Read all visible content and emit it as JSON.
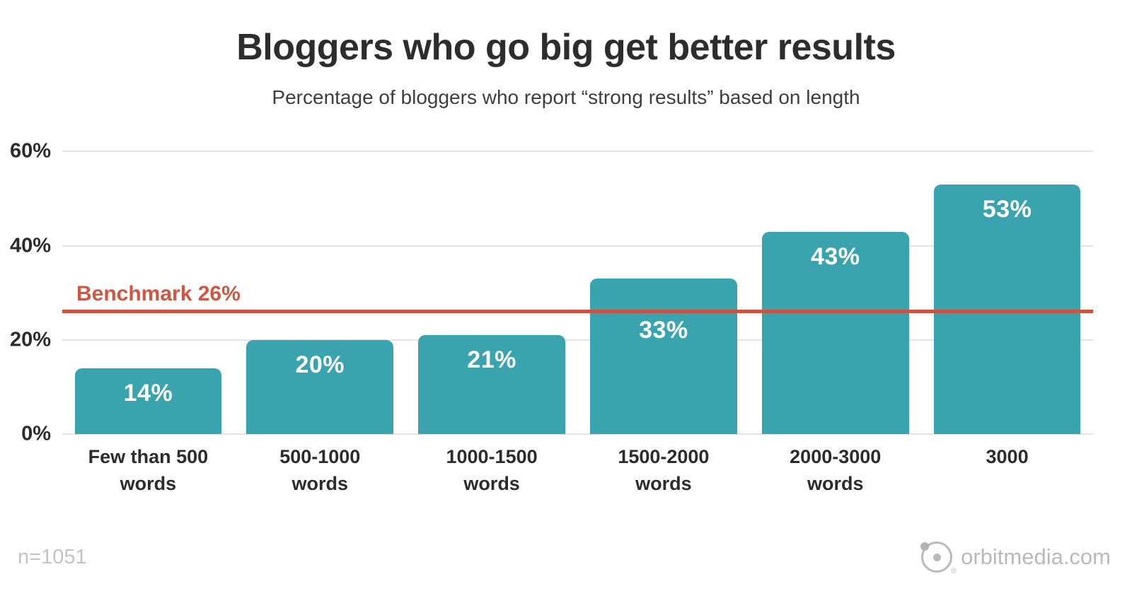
{
  "chart_data": {
    "type": "bar",
    "title": "Bloggers who go big get better results",
    "subtitle": "Percentage of bloggers who report “strong results” based on length",
    "categories": [
      "Few than 500 words",
      "500-1000 words",
      "1000-1500 words",
      "1500-2000 words",
      "2000-3000 words",
      "3000"
    ],
    "category_lines": [
      [
        "Few than 500",
        "words"
      ],
      [
        "500-1000",
        "words"
      ],
      [
        "1000-1500",
        "words"
      ],
      [
        "1500-2000",
        "words"
      ],
      [
        "2000-3000",
        "words"
      ],
      [
        "3000"
      ]
    ],
    "values": [
      14,
      20,
      21,
      33,
      43,
      53
    ],
    "value_labels": [
      "14%",
      "20%",
      "21%",
      "33%",
      "43%",
      "53%"
    ],
    "xlabel": "",
    "ylabel": "",
    "ylim": [
      0,
      60
    ],
    "yticks": [
      {
        "value": 0,
        "label": "0%"
      },
      {
        "value": 20,
        "label": "20%"
      },
      {
        "value": 40,
        "label": "40%"
      },
      {
        "value": 60,
        "label": "60%"
      }
    ],
    "benchmark": {
      "value": 26,
      "label": "Benchmark 26%"
    },
    "grid": "horizontal",
    "legend": "none",
    "colors": {
      "bar": "#39a4ae",
      "benchmark_line": "#cb5340",
      "benchmark_text": "#d15540",
      "grid": "#e4e4e4",
      "value_text": "#ffffff",
      "title_text": "#2d2d2d"
    }
  },
  "footer": {
    "sample_size": "n=1051",
    "brand": "orbitmedia.com",
    "registered_mark": "®"
  }
}
